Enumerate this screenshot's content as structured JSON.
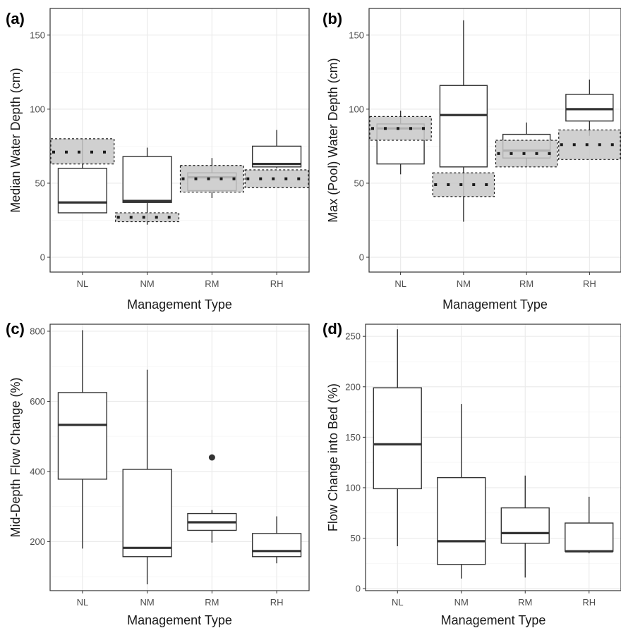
{
  "colors": {
    "panel_border": "#333333",
    "grid_major": "#ebebeb",
    "grid_minor": "#f5f5f5",
    "box_line": "#333333",
    "box_fill": "#ffffff",
    "ref_fill": "#c8c8c8",
    "ref_line": "#1a1a1a",
    "tick_text": "#4d4d4d"
  },
  "chart_data": [
    {
      "type": "box",
      "panel_label": "(a)",
      "xlabel": "Management Type",
      "ylabel": "Median Water Depth (cm)",
      "ylim": [
        -10,
        168
      ],
      "yticks": [
        0,
        50,
        100,
        150
      ],
      "tick_labels": [
        "0",
        "50",
        "100",
        "150"
      ],
      "categories": [
        "NL",
        "NM",
        "RM",
        "RH"
      ],
      "boxes": [
        {
          "min": 30,
          "q1": 30,
          "median": 37,
          "q3": 60,
          "max": 80,
          "outliers": []
        },
        {
          "min": 22,
          "q1": 37,
          "median": 38,
          "q3": 68,
          "max": 74,
          "outliers": []
        },
        {
          "min": 40,
          "q1": 45,
          "median": 54,
          "q3": 57,
          "max": 67,
          "outliers": []
        },
        {
          "min": 60,
          "q1": 61,
          "median": 63,
          "q3": 75,
          "max": 86,
          "outliers": []
        }
      ],
      "reference": [
        {
          "value": 71,
          "low": 63,
          "high": 80
        },
        {
          "value": 27,
          "low": 24,
          "high": 30
        },
        {
          "value": 53,
          "low": 44,
          "high": 62
        },
        {
          "value": 53,
          "low": 47,
          "high": 59
        }
      ],
      "grid": true
    },
    {
      "type": "box",
      "panel_label": "(b)",
      "xlabel": "Management Type",
      "ylabel": "Max (Pool) Water Depth (cm)",
      "ylim": [
        -10,
        168
      ],
      "yticks": [
        0,
        50,
        100,
        150
      ],
      "tick_labels": [
        "0",
        "50",
        "100",
        "150"
      ],
      "categories": [
        "NL",
        "NM",
        "RM",
        "RH"
      ],
      "boxes": [
        {
          "min": 56,
          "q1": 63,
          "median": 87,
          "q3": 90,
          "max": 99,
          "outliers": []
        },
        {
          "min": 24,
          "q1": 61,
          "median": 96,
          "q3": 116,
          "max": 160,
          "outliers": []
        },
        {
          "min": 61,
          "q1": 67,
          "median": 72,
          "q3": 83,
          "max": 91,
          "outliers": []
        },
        {
          "min": 82,
          "q1": 92,
          "median": 100,
          "q3": 110,
          "max": 120,
          "outliers": []
        }
      ],
      "reference": [
        {
          "value": 87,
          "low": 79,
          "high": 95
        },
        {
          "value": 49,
          "low": 41,
          "high": 57
        },
        {
          "value": 70,
          "low": 61,
          "high": 79
        },
        {
          "value": 76,
          "low": 66,
          "high": 86
        }
      ],
      "grid": true
    },
    {
      "type": "box",
      "panel_label": "(c)",
      "xlabel": "Management Type",
      "ylabel": "Mid-Depth Flow Change (%)",
      "ylim": [
        60,
        820
      ],
      "yticks": [
        200,
        400,
        600,
        800
      ],
      "tick_labels": [
        "200",
        "400",
        "600",
        "800"
      ],
      "categories": [
        "NL",
        "NM",
        "RM",
        "RH"
      ],
      "boxes": [
        {
          "min": 180,
          "q1": 378,
          "median": 533,
          "q3": 625,
          "max": 803,
          "outliers": []
        },
        {
          "min": 78,
          "q1": 157,
          "median": 182,
          "q3": 406,
          "max": 690,
          "outliers": []
        },
        {
          "min": 197,
          "q1": 232,
          "median": 255,
          "q3": 280,
          "max": 290,
          "outliers": [
            440
          ]
        },
        {
          "min": 138,
          "q1": 157,
          "median": 173,
          "q3": 223,
          "max": 272,
          "outliers": []
        }
      ],
      "grid": true
    },
    {
      "type": "box",
      "panel_label": "(d)",
      "xlabel": "Management Type",
      "ylabel": "Flow Change into Bed (%)",
      "ylim": [
        -2,
        262
      ],
      "yticks": [
        0,
        50,
        100,
        150,
        200,
        250
      ],
      "tick_labels": [
        "0",
        "50",
        "100",
        "150",
        "200",
        "250"
      ],
      "categories": [
        "NL",
        "NM",
        "RM",
        "RH"
      ],
      "boxes": [
        {
          "min": 42,
          "q1": 99,
          "median": 143,
          "q3": 199,
          "max": 257,
          "outliers": []
        },
        {
          "min": 10,
          "q1": 24,
          "median": 47,
          "q3": 110,
          "max": 183,
          "outliers": []
        },
        {
          "min": 11,
          "q1": 45,
          "median": 55,
          "q3": 80,
          "max": 112,
          "outliers": []
        },
        {
          "min": 35,
          "q1": 37,
          "median": 37,
          "q3": 65,
          "max": 91,
          "outliers": []
        }
      ],
      "grid": true
    }
  ]
}
